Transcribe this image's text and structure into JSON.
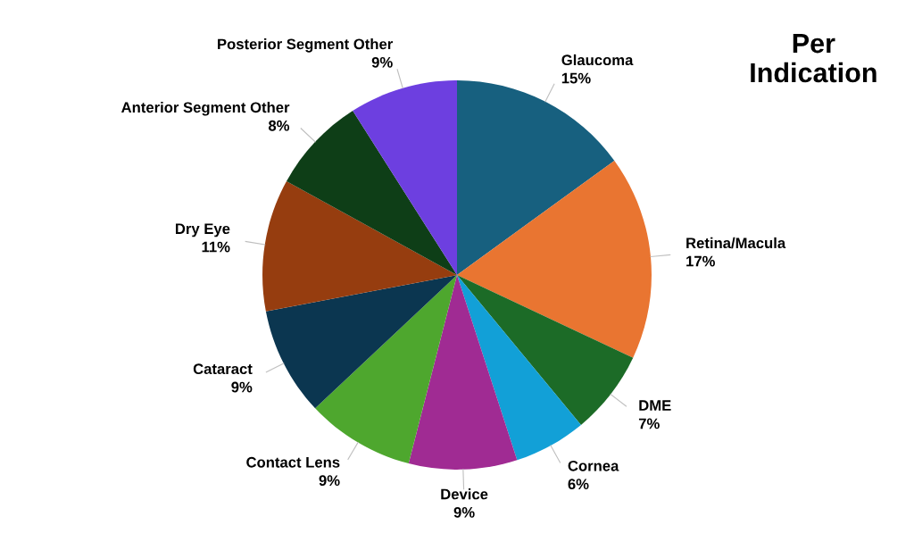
{
  "chart_data": {
    "type": "pie",
    "title": "Per\nIndication",
    "categories": [
      "Glaucoma",
      "Retina/Macula",
      "DME",
      "Cornea",
      "Device",
      "Contact Lens",
      "Cataract",
      "Dry Eye",
      "Anterior Segment Other",
      "Posterior Segment Other"
    ],
    "values": [
      15,
      17,
      7,
      6,
      9,
      9,
      9,
      11,
      8,
      9
    ],
    "value_labels": [
      "15%",
      "17%",
      "7%",
      "6%",
      "9%",
      "9%",
      "9%",
      "11%",
      "8%",
      "9%"
    ],
    "colors": [
      "#17607f",
      "#e97531",
      "#1c6b27",
      "#12a0d7",
      "#a02b93",
      "#4ea72e",
      "#0b3650",
      "#963d0f",
      "#0e3e17",
      "#6d3fe0"
    ],
    "legend": false
  }
}
